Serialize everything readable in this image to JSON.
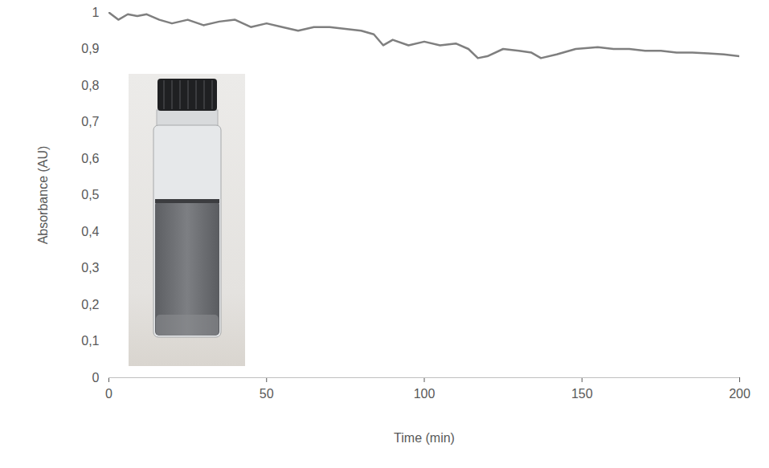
{
  "chart_data": {
    "type": "line",
    "x_label": "Time (min)",
    "y_label": "Absorbance (AU)",
    "x": [
      0,
      3,
      6,
      9,
      12,
      16,
      20,
      25,
      30,
      35,
      40,
      45,
      50,
      55,
      60,
      65,
      70,
      75,
      80,
      84,
      87,
      90,
      95,
      100,
      105,
      110,
      114,
      117,
      120,
      125,
      130,
      134,
      137,
      142,
      148,
      155,
      160,
      165,
      170,
      175,
      180,
      185,
      190,
      195,
      200
    ],
    "series": [
      {
        "name": "Absorbance",
        "color": "#7f7f7f",
        "values": [
          1.0,
          0.98,
          0.995,
          0.99,
          0.995,
          0.98,
          0.97,
          0.98,
          0.965,
          0.975,
          0.98,
          0.96,
          0.97,
          0.96,
          0.95,
          0.96,
          0.96,
          0.955,
          0.95,
          0.94,
          0.91,
          0.925,
          0.91,
          0.92,
          0.91,
          0.915,
          0.9,
          0.875,
          0.88,
          0.9,
          0.895,
          0.89,
          0.875,
          0.885,
          0.9,
          0.905,
          0.9,
          0.9,
          0.895,
          0.895,
          0.89,
          0.89,
          0.888,
          0.885,
          0.88
        ]
      }
    ],
    "xlim": [
      0,
      200
    ],
    "xticks": [
      0,
      50,
      100,
      150,
      200
    ],
    "ylim": [
      0,
      1
    ],
    "yticks": [
      0,
      {
        "value": 0.1,
        "label": "0,1"
      },
      {
        "value": 0.2,
        "label": "0,2"
      },
      {
        "value": 0.3,
        "label": "0,3"
      },
      {
        "value": 0.4,
        "label": "0,4"
      },
      {
        "value": 0.5,
        "label": "0,5"
      },
      {
        "value": 0.6,
        "label": "0,6"
      },
      {
        "value": 0.7,
        "label": "0,7"
      },
      {
        "value": 0.8,
        "label": "0,8"
      },
      {
        "value": 0.9,
        "label": "0,9"
      },
      1
    ],
    "grid": false
  }
}
